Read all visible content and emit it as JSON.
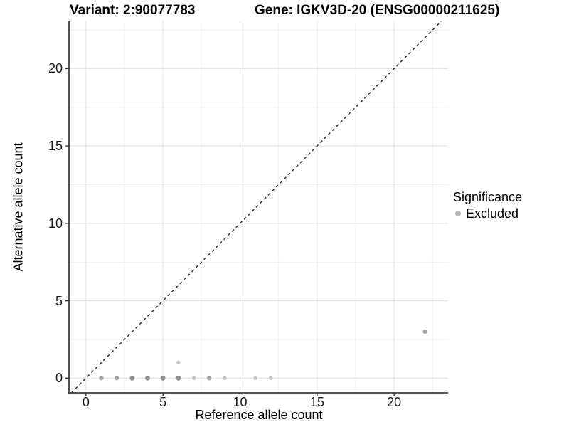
{
  "header": {
    "variant_title": "Variant: 2:90077783",
    "gene_title": "Gene: IGKV3D-20 (ENSG00000211625)"
  },
  "chart_data": {
    "type": "scatter",
    "xlabel": "Reference allele count",
    "ylabel": "Alternative allele count",
    "xlim": [
      -1.1,
      23.5
    ],
    "ylim": [
      -0.95,
      23.05
    ],
    "x_ticks": [
      0,
      5,
      10,
      15,
      20
    ],
    "y_ticks": [
      0,
      5,
      10,
      15,
      20
    ],
    "x_minor_gridlines": [
      2.5,
      7.5,
      12.5,
      17.5,
      22.5
    ],
    "y_minor_gridlines": [
      2.5,
      7.5,
      12.5,
      17.5,
      22.5
    ],
    "grid": true,
    "identity_line": {
      "slope": 1,
      "intercept": 0,
      "style": "dashed",
      "color": "#1a1a1a"
    },
    "points": [
      {
        "x": 1,
        "y": 0,
        "shade": "mid"
      },
      {
        "x": 2,
        "y": 0,
        "shade": "mid"
      },
      {
        "x": 3,
        "y": 0,
        "shade": "dark"
      },
      {
        "x": 4,
        "y": 0,
        "shade": "dark"
      },
      {
        "x": 5,
        "y": 0,
        "shade": "dark"
      },
      {
        "x": 6,
        "y": 0,
        "shade": "dark"
      },
      {
        "x": 7,
        "y": 0,
        "shade": "light"
      },
      {
        "x": 8,
        "y": 0,
        "shade": "mid"
      },
      {
        "x": 9,
        "y": 0,
        "shade": "light"
      },
      {
        "x": 11,
        "y": 0,
        "shade": "light"
      },
      {
        "x": 12,
        "y": 0,
        "shade": "light"
      },
      {
        "x": 6,
        "y": 1,
        "shade": "light"
      },
      {
        "x": 22,
        "y": 3,
        "shade": "mid"
      }
    ],
    "point_shades": {
      "dark": "#8e8e8e",
      "mid": "#a2a2a2",
      "light": "#c3c3c3"
    },
    "colors": {
      "major_gridline": "#e5e5e5",
      "minor_gridline": "#f1f1f1",
      "axis_line": "#3c3c3c",
      "tick_mark": "#333333"
    },
    "legend": {
      "title": "Significance",
      "position": "right",
      "items": [
        {
          "label": "Excluded",
          "color": "#b3b3b3"
        }
      ]
    }
  }
}
